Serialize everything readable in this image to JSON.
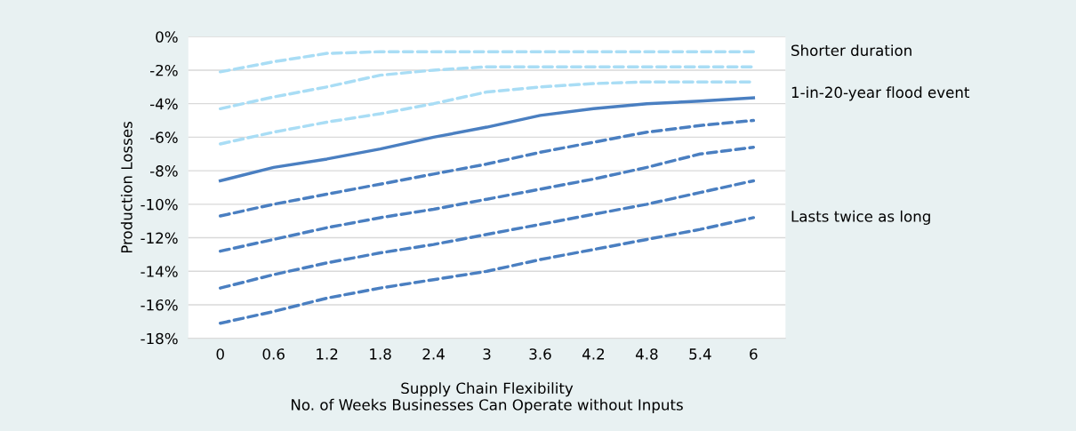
{
  "chart_data": {
    "type": "line",
    "xlabel": "Supply Chain Flexibility\nNo. of Weeks Businesses Can Operate without Inputs",
    "ylabel": "Production Losses",
    "categories": [
      "0",
      "0.6",
      "1.2",
      "1.8",
      "2.4",
      "3",
      "3.6",
      "4.2",
      "4.8",
      "5.4",
      "6"
    ],
    "series": [
      {
        "color": "#a9ddf5",
        "line_style": "dashed",
        "values": [
          -2.1,
          -1.5,
          -1.0,
          -0.9,
          -0.9,
          -0.9,
          -0.9,
          -0.9,
          -0.9,
          -0.9,
          -0.9
        ]
      },
      {
        "color": "#a9ddf5",
        "line_style": "dashed",
        "values": [
          -4.3,
          -3.6,
          -3.0,
          -2.3,
          -2.0,
          -1.8,
          -1.8,
          -1.8,
          -1.8,
          -1.8,
          -1.8
        ]
      },
      {
        "color": "#a9ddf5",
        "line_style": "dashed",
        "values": [
          -6.4,
          -5.7,
          -5.1,
          -4.6,
          -4.0,
          -3.3,
          -3.0,
          -2.8,
          -2.7,
          -2.7,
          -2.7
        ]
      },
      {
        "color": "#4a7fc1",
        "line_style": "solid",
        "values": [
          -8.6,
          -7.8,
          -7.3,
          -6.7,
          -6.0,
          -5.4,
          -4.7,
          -4.3,
          -4.0,
          -3.85,
          -3.65
        ]
      },
      {
        "color": "#4a7fc1",
        "line_style": "dashed",
        "values": [
          -10.7,
          -10.0,
          -9.4,
          -8.8,
          -8.2,
          -7.6,
          -6.9,
          -6.3,
          -5.7,
          -5.3,
          -5.0
        ]
      },
      {
        "color": "#4a7fc1",
        "line_style": "dashed",
        "values": [
          -12.8,
          -12.1,
          -11.4,
          -10.8,
          -10.3,
          -9.7,
          -9.1,
          -8.5,
          -7.8,
          -7.0,
          -6.6
        ]
      },
      {
        "color": "#4a7fc1",
        "line_style": "dashed",
        "values": [
          -15.0,
          -14.2,
          -13.5,
          -12.9,
          -12.4,
          -11.8,
          -11.2,
          -10.6,
          -10.0,
          -9.3,
          -8.6
        ]
      },
      {
        "color": "#4a7fc1",
        "line_style": "dashed",
        "values": [
          -17.1,
          -16.4,
          -15.6,
          -15.0,
          -14.5,
          -14.0,
          -13.3,
          -12.7,
          -12.1,
          -11.5,
          -10.8
        ]
      }
    ],
    "annotations": [
      {
        "text": "Shorter duration",
        "x": "6",
        "y": -0.9
      },
      {
        "text": "1-in-20-year flood event",
        "x": "6",
        "y": -3.4
      },
      {
        "text": "Lasts twice as long",
        "x": "6",
        "y": -10.8
      }
    ],
    "ylim": [
      -18,
      0
    ],
    "yticks": [
      {
        "value": -18,
        "label": "-18%"
      },
      {
        "value": -16,
        "label": "-16%"
      },
      {
        "value": -14,
        "label": "-14%"
      },
      {
        "value": -12,
        "label": "-12%"
      },
      {
        "value": -10,
        "label": "-10%"
      },
      {
        "value": -8,
        "label": "-8%"
      },
      {
        "value": -6,
        "label": "-6%"
      },
      {
        "value": -4,
        "label": "-4%"
      },
      {
        "value": -2,
        "label": "-2%"
      },
      {
        "value": 0,
        "label": "0%"
      }
    ],
    "grid": "y"
  }
}
